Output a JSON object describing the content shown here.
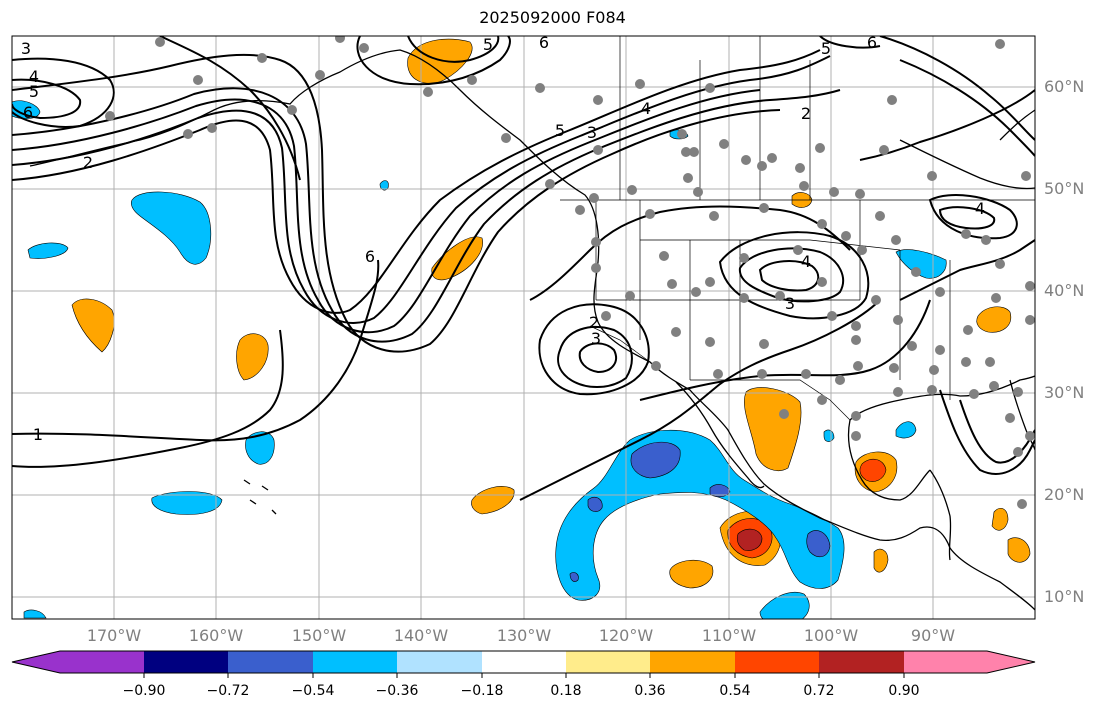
{
  "title": "2025092000 F084",
  "lon_labels": [
    "170°W",
    "160°W",
    "150°W",
    "140°W",
    "130°W",
    "120°W",
    "110°W",
    "100°W",
    "90°W"
  ],
  "lat_labels": [
    "60°N",
    "50°N",
    "40°N",
    "30°N",
    "20°N",
    "10°N"
  ],
  "colorbar": {
    "labels": [
      "−0.90",
      "−0.72",
      "−0.54",
      "−0.36",
      "−0.18",
      "0.18",
      "0.36",
      "0.54",
      "0.72",
      "0.90"
    ],
    "colors": [
      "#9932cc",
      "#000080",
      "#3a5fcd",
      "#00bfff",
      "#b0e2ff",
      "#ffffff",
      "#ffec8b",
      "#ffa500",
      "#ff4500",
      "#b22222",
      "#ff82ab"
    ]
  },
  "contour_labels": [
    "3",
    "4",
    "5",
    "6",
    "2",
    "6",
    "5",
    "6",
    "5",
    "6",
    "4",
    "5",
    "3",
    "2",
    "4",
    "4",
    "3",
    "2",
    "3",
    "1"
  ]
}
